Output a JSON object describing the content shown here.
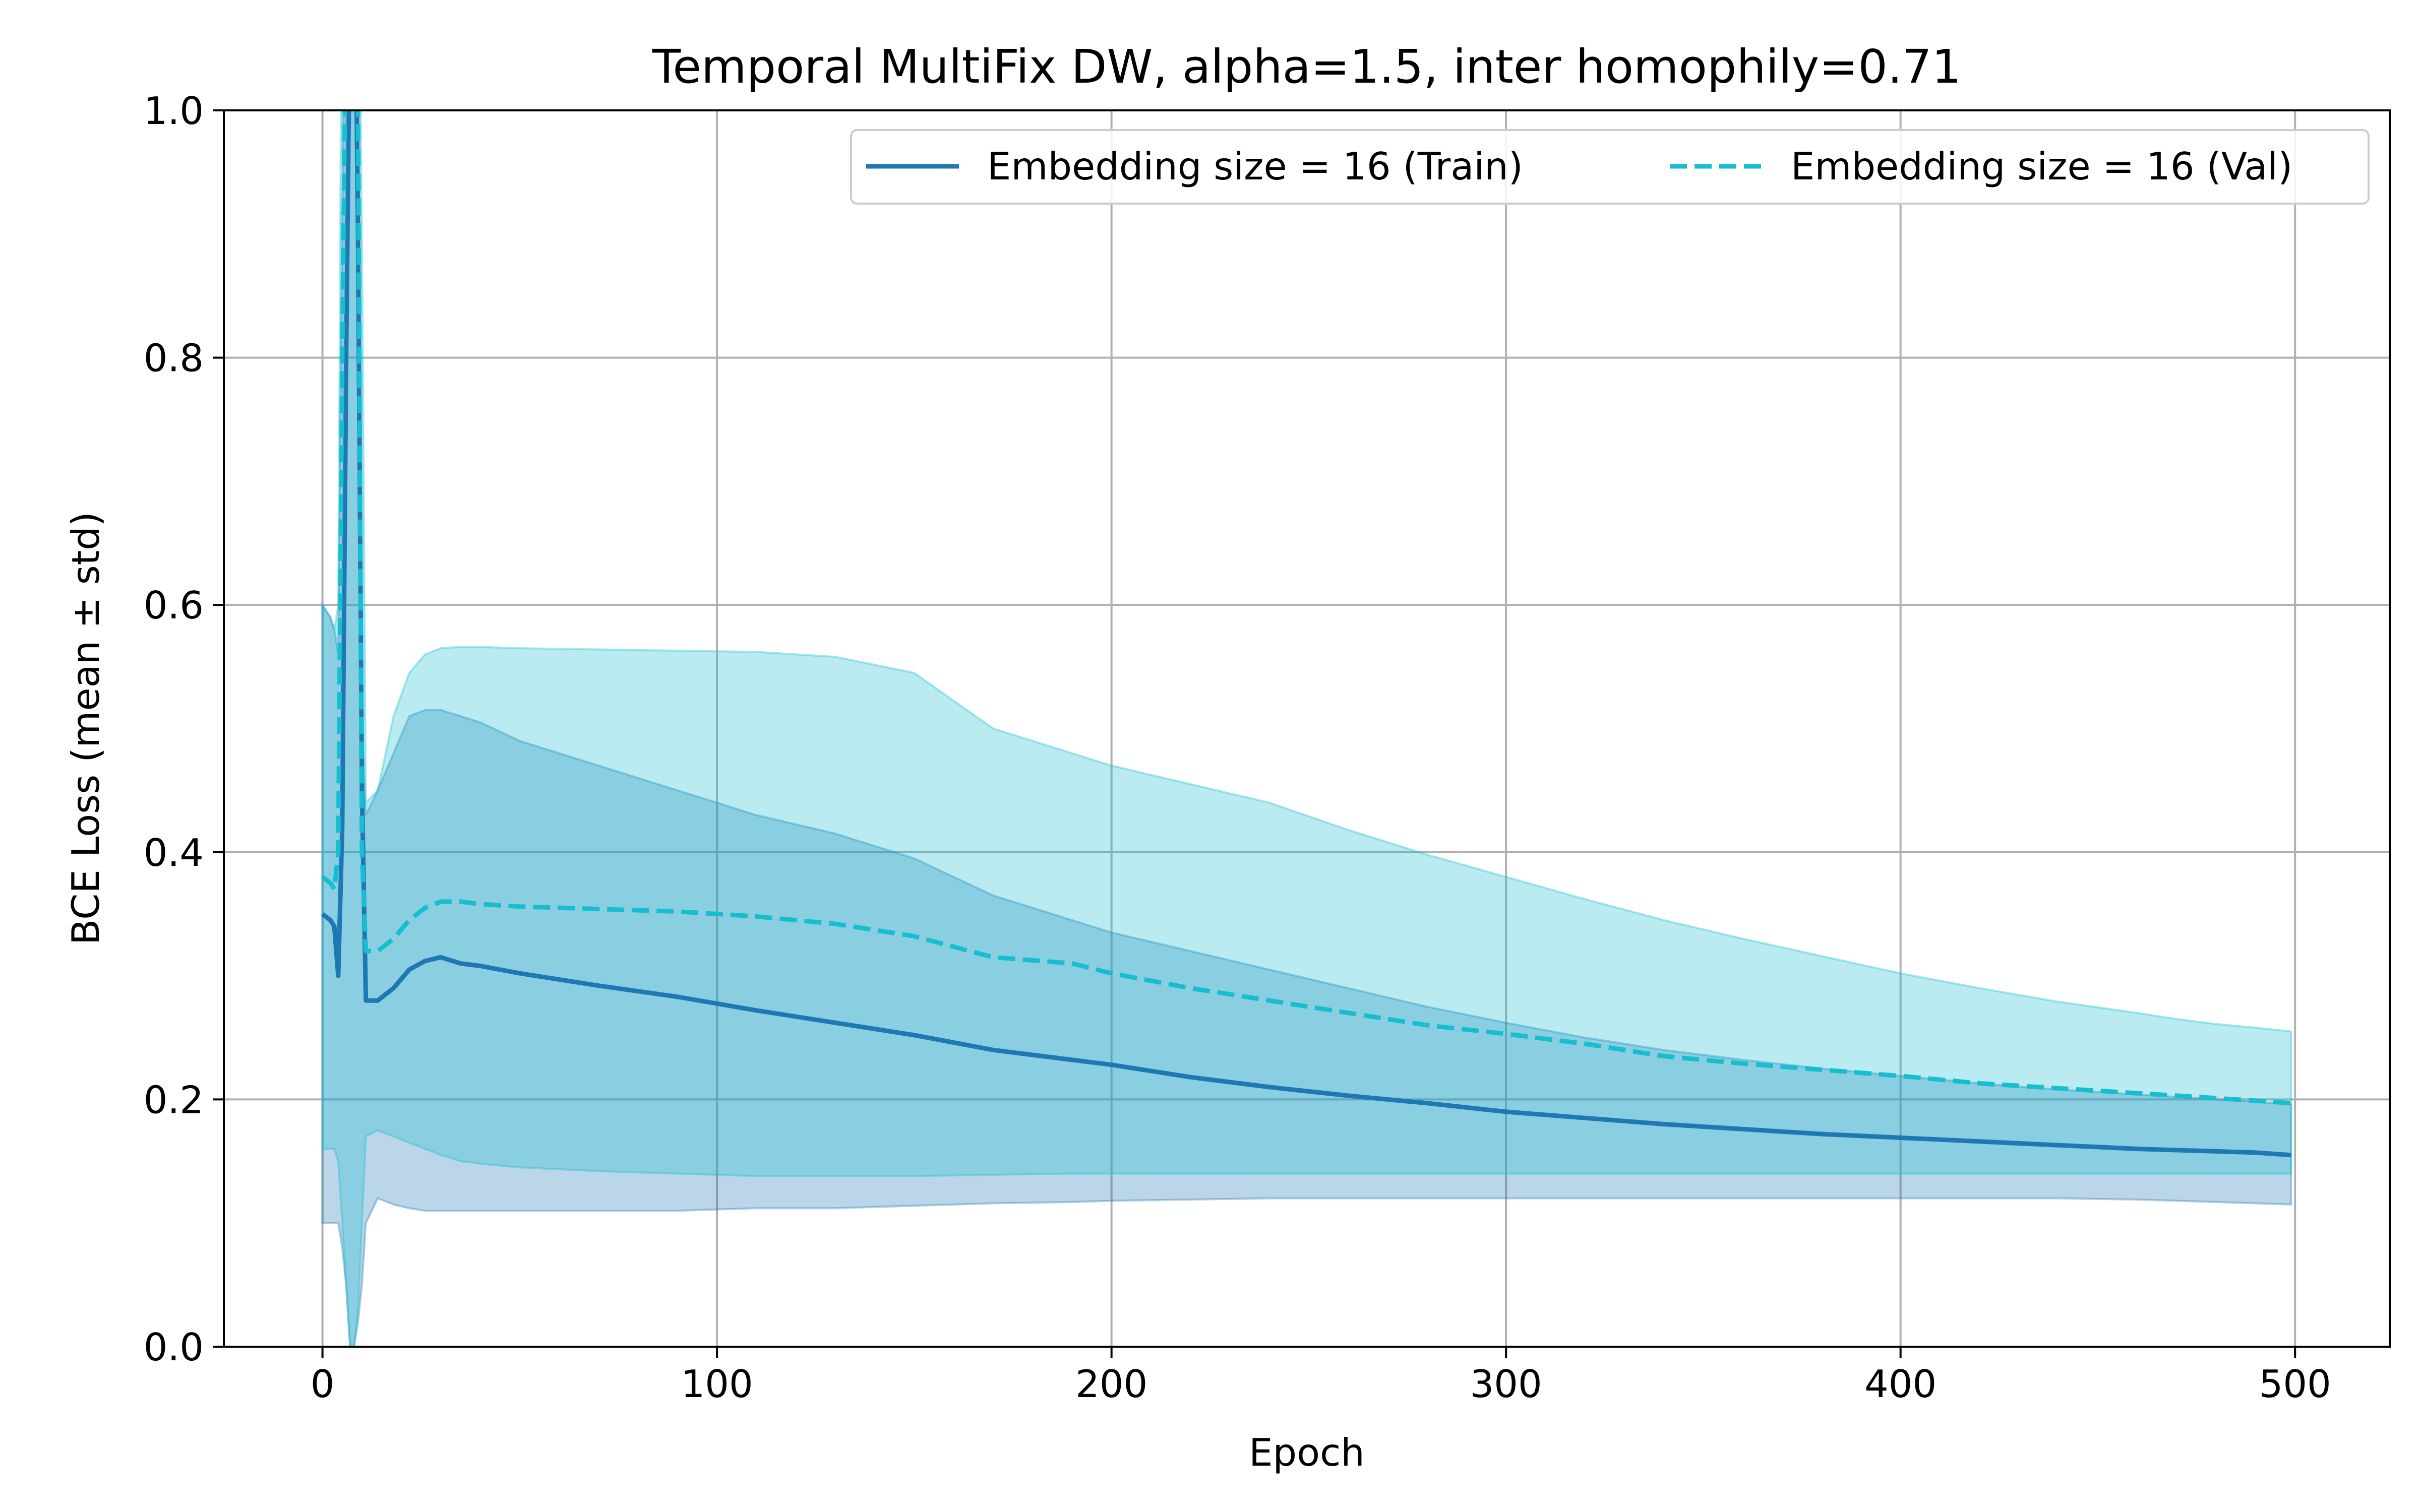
{
  "chart_data": {
    "type": "line",
    "title": "Temporal MultiFix DW, alpha=1.5, inter homophily=0.71",
    "xlabel": "Epoch",
    "ylabel": "BCE Loss (mean ± std)",
    "xlim": [
      -25,
      524
    ],
    "ylim": [
      0.0,
      1.0
    ],
    "xticks": [
      0,
      100,
      200,
      300,
      400,
      500
    ],
    "xtick_labels": [
      "0",
      "100",
      "200",
      "300",
      "400",
      "500"
    ],
    "yticks": [
      0.0,
      0.2,
      0.4,
      0.6,
      0.8,
      1.0
    ],
    "ytick_labels": [
      "0.0",
      "0.2",
      "0.4",
      "0.6",
      "0.8",
      "1.0"
    ],
    "grid": true,
    "legend_position": "top-right",
    "series": [
      {
        "name": "Embedding size = 16 (Train)",
        "color": "#1f77b4",
        "line_style": "solid",
        "x": [
          0,
          2,
          3,
          4,
          5,
          6,
          7,
          8,
          9,
          10,
          11,
          14,
          18,
          22,
          26,
          30,
          35,
          40,
          50,
          70,
          90,
          110,
          130,
          150,
          170,
          190,
          200,
          220,
          240,
          260,
          280,
          300,
          320,
          340,
          360,
          380,
          400,
          420,
          440,
          460,
          470,
          480,
          490,
          499
        ],
        "mean": [
          0.35,
          0.345,
          0.34,
          0.3,
          0.42,
          0.8,
          1.1,
          1.2,
          0.9,
          0.45,
          0.28,
          0.28,
          0.29,
          0.305,
          0.312,
          0.315,
          0.31,
          0.308,
          0.302,
          0.292,
          0.283,
          0.272,
          0.262,
          0.252,
          0.24,
          0.232,
          0.228,
          0.218,
          0.21,
          0.203,
          0.197,
          0.19,
          0.185,
          0.18,
          0.176,
          0.172,
          0.169,
          0.166,
          0.163,
          0.16,
          0.159,
          0.158,
          0.157,
          0.155
        ],
        "lower": [
          0.1,
          0.1,
          0.1,
          0.1,
          0.08,
          0.05,
          0.0,
          0.0,
          0.02,
          0.05,
          0.1,
          0.12,
          0.115,
          0.112,
          0.11,
          0.11,
          0.11,
          0.11,
          0.11,
          0.11,
          0.11,
          0.112,
          0.112,
          0.114,
          0.116,
          0.117,
          0.118,
          0.119,
          0.12,
          0.12,
          0.12,
          0.12,
          0.12,
          0.12,
          0.12,
          0.12,
          0.12,
          0.12,
          0.12,
          0.119,
          0.118,
          0.117,
          0.116,
          0.115
        ],
        "upper": [
          0.6,
          0.59,
          0.58,
          0.56,
          0.9,
          1.2,
          1.2,
          1.2,
          1.1,
          0.5,
          0.43,
          0.45,
          0.48,
          0.51,
          0.515,
          0.515,
          0.51,
          0.505,
          0.49,
          0.47,
          0.45,
          0.43,
          0.415,
          0.395,
          0.365,
          0.345,
          0.335,
          0.32,
          0.305,
          0.29,
          0.275,
          0.262,
          0.25,
          0.24,
          0.232,
          0.225,
          0.219,
          0.213,
          0.208,
          0.204,
          0.202,
          0.2,
          0.198,
          0.196
        ]
      },
      {
        "name": "Embedding size = 16 (Val)",
        "color": "#17becf",
        "line_style": "dashed",
        "x": [
          0,
          2,
          3,
          4,
          5,
          6,
          7,
          8,
          9,
          10,
          11,
          14,
          18,
          22,
          26,
          30,
          35,
          40,
          50,
          70,
          90,
          110,
          130,
          150,
          170,
          190,
          200,
          220,
          240,
          260,
          280,
          300,
          320,
          340,
          360,
          380,
          400,
          420,
          440,
          460,
          470,
          480,
          490,
          499
        ],
        "mean": [
          0.38,
          0.375,
          0.37,
          0.4,
          0.8,
          1.1,
          1.2,
          1.2,
          1.0,
          0.4,
          0.32,
          0.32,
          0.33,
          0.345,
          0.355,
          0.36,
          0.36,
          0.358,
          0.356,
          0.354,
          0.352,
          0.348,
          0.342,
          0.332,
          0.315,
          0.31,
          0.302,
          0.29,
          0.28,
          0.27,
          0.26,
          0.253,
          0.245,
          0.235,
          0.229,
          0.224,
          0.219,
          0.213,
          0.209,
          0.205,
          0.203,
          0.201,
          0.199,
          0.197
        ],
        "lower": [
          0.16,
          0.16,
          0.16,
          0.15,
          0.1,
          0.05,
          0.0,
          0.0,
          0.03,
          0.1,
          0.17,
          0.175,
          0.17,
          0.165,
          0.16,
          0.155,
          0.15,
          0.148,
          0.145,
          0.142,
          0.14,
          0.138,
          0.138,
          0.138,
          0.139,
          0.14,
          0.14,
          0.14,
          0.14,
          0.14,
          0.14,
          0.14,
          0.14,
          0.14,
          0.14,
          0.14,
          0.14,
          0.14,
          0.14,
          0.14,
          0.14,
          0.14,
          0.14,
          0.14
        ],
        "upper": [
          0.6,
          0.59,
          0.58,
          0.6,
          1.2,
          1.2,
          1.2,
          1.2,
          1.2,
          0.9,
          0.44,
          0.45,
          0.51,
          0.545,
          0.56,
          0.565,
          0.566,
          0.566,
          0.565,
          0.564,
          0.563,
          0.562,
          0.558,
          0.545,
          0.5,
          0.48,
          0.47,
          0.455,
          0.44,
          0.418,
          0.398,
          0.38,
          0.362,
          0.345,
          0.33,
          0.316,
          0.302,
          0.29,
          0.279,
          0.27,
          0.265,
          0.261,
          0.258,
          0.255
        ]
      }
    ]
  }
}
